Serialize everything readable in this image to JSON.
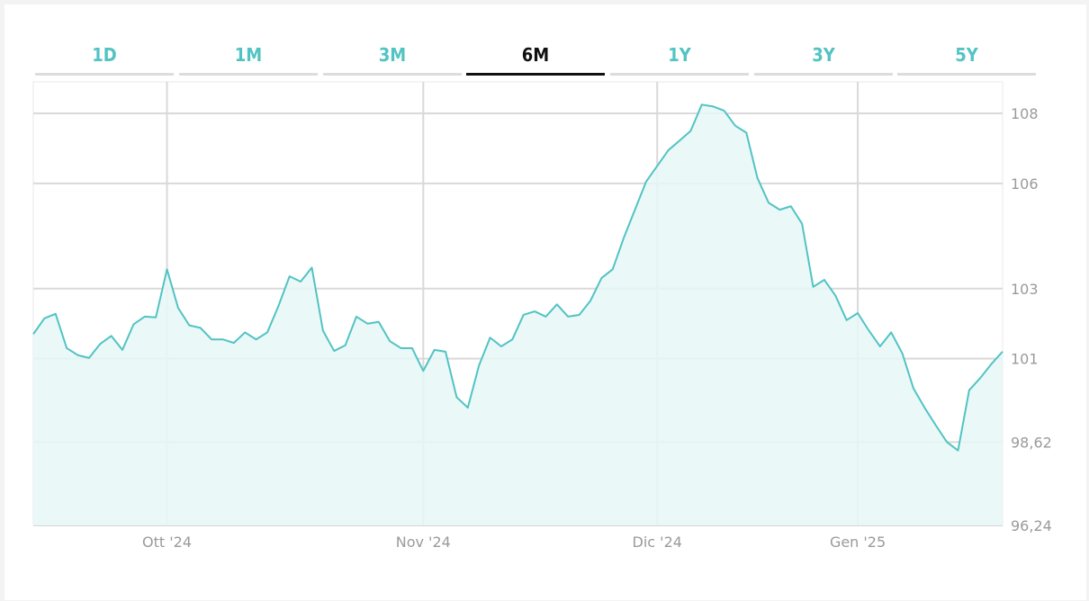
{
  "tabs": [
    {
      "label": "1D",
      "active": false
    },
    {
      "label": "1M",
      "active": false
    },
    {
      "label": "3M",
      "active": false
    },
    {
      "label": "6M",
      "active": true
    },
    {
      "label": "1Y",
      "active": false
    },
    {
      "label": "3Y",
      "active": false
    },
    {
      "label": "5Y",
      "active": false
    }
  ],
  "colors": {
    "line": "#52c3c3",
    "fill": "#e6f7f7",
    "active_tab": "#111111",
    "tab": "#52c3c3"
  },
  "chart_data": {
    "type": "area",
    "title": "",
    "xlabel": "",
    "ylabel": "",
    "grid": true,
    "ylim": [
      96.24,
      108.9
    ],
    "y_ticks": [
      {
        "value": 96.24,
        "label": "96,24"
      },
      {
        "value": 98.62,
        "label": "98,62"
      },
      {
        "value": 101,
        "label": "101"
      },
      {
        "value": 103,
        "label": "103"
      },
      {
        "value": 106,
        "label": "106"
      },
      {
        "value": 108,
        "label": "108"
      }
    ],
    "x_ticks": [
      {
        "index": 12,
        "label": "Ott '24"
      },
      {
        "index": 35,
        "label": "Nov '24"
      },
      {
        "index": 56,
        "label": "Dic '24"
      },
      {
        "index": 74,
        "label": "Gen '25"
      }
    ],
    "x_count": 88,
    "values": [
      101.7,
      102.15,
      102.28,
      101.3,
      101.1,
      101.02,
      101.42,
      101.65,
      101.25,
      101.98,
      102.2,
      102.18,
      103.55,
      102.45,
      101.95,
      101.88,
      101.55,
      101.55,
      101.45,
      101.75,
      101.55,
      101.75,
      102.5,
      103.35,
      103.2,
      103.6,
      101.8,
      101.22,
      101.38,
      102.2,
      102.0,
      102.05,
      101.5,
      101.3,
      101.3,
      100.65,
      101.25,
      101.2,
      99.9,
      99.6,
      100.8,
      101.6,
      101.35,
      101.55,
      102.25,
      102.35,
      102.2,
      102.55,
      102.2,
      102.25,
      102.65,
      103.3,
      103.55,
      104.45,
      105.25,
      106.05,
      106.5,
      106.95,
      107.22,
      107.5,
      108.25,
      108.2,
      108.08,
      107.65,
      107.45,
      106.15,
      105.45,
      105.25,
      105.35,
      104.85,
      103.05,
      103.25,
      102.8,
      102.1,
      102.3,
      101.8,
      101.35,
      101.75,
      101.15,
      100.15,
      99.6,
      99.1,
      98.62,
      98.38,
      100.1,
      100.45,
      100.85,
      101.2
    ]
  }
}
